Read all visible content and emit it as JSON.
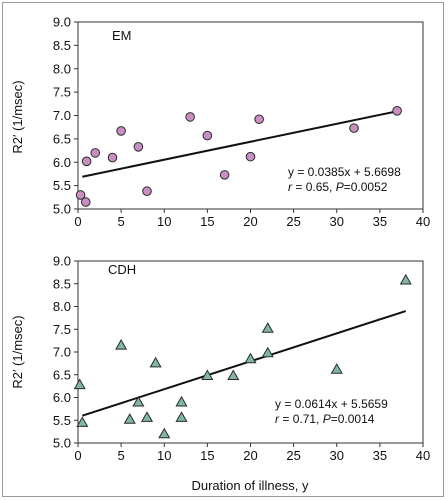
{
  "chart_data": [
    {
      "type": "scatter",
      "panel_label": "EM",
      "xlabel": "",
      "ylabel": "R2′ (1/msec)",
      "xlim": [
        0,
        40
      ],
      "ylim": [
        5.0,
        9.0
      ],
      "x_ticks": [
        "0",
        "5",
        "10",
        "15",
        "20",
        "25",
        "30",
        "35",
        "40"
      ],
      "y_ticks": [
        "5.0",
        "5.5",
        "6.0",
        "6.5",
        "7.0",
        "7.5",
        "8.0",
        "8.5",
        "9.0"
      ],
      "marker": "circle",
      "marker_color": "#c98fc2",
      "grid": false,
      "points": [
        {
          "x": 0.3,
          "y": 5.3
        },
        {
          "x": 0.9,
          "y": 5.15
        },
        {
          "x": 1.0,
          "y": 6.02
        },
        {
          "x": 2.0,
          "y": 6.2
        },
        {
          "x": 4.0,
          "y": 6.1
        },
        {
          "x": 5.0,
          "y": 6.67
        },
        {
          "x": 7.0,
          "y": 6.33
        },
        {
          "x": 8.0,
          "y": 5.38
        },
        {
          "x": 13.0,
          "y": 6.97
        },
        {
          "x": 15.0,
          "y": 6.57
        },
        {
          "x": 17.0,
          "y": 5.73
        },
        {
          "x": 20.0,
          "y": 6.12
        },
        {
          "x": 21.0,
          "y": 6.92
        },
        {
          "x": 32.0,
          "y": 6.73
        },
        {
          "x": 37.0,
          "y": 7.1
        }
      ],
      "fit_line": {
        "x": [
          0.5,
          37.5
        ],
        "y": [
          5.69,
          7.11
        ]
      },
      "equation": "y = 0.0385x + 5.6698",
      "stat_r": "0.65",
      "stat_p": "0.0052"
    },
    {
      "type": "scatter",
      "panel_label": "CDH",
      "xlabel": "Duration of illness, y",
      "ylabel": "R2′ (1/msec)",
      "xlim": [
        0,
        40
      ],
      "ylim": [
        5.0,
        9.0
      ],
      "x_ticks": [
        "0",
        "5",
        "10",
        "15",
        "20",
        "25",
        "30",
        "35",
        "40"
      ],
      "y_ticks": [
        "5.0",
        "5.5",
        "6.0",
        "6.5",
        "7.0",
        "7.5",
        "8.0",
        "8.5",
        "9.0"
      ],
      "marker": "triangle",
      "marker_color": "#7fb8a2",
      "grid": false,
      "points": [
        {
          "x": 0.2,
          "y": 6.28
        },
        {
          "x": 0.5,
          "y": 5.45
        },
        {
          "x": 5.0,
          "y": 7.15
        },
        {
          "x": 6.0,
          "y": 5.52
        },
        {
          "x": 7.0,
          "y": 5.9
        },
        {
          "x": 8.0,
          "y": 5.56
        },
        {
          "x": 9.0,
          "y": 6.76
        },
        {
          "x": 10.0,
          "y": 5.2
        },
        {
          "x": 12.0,
          "y": 5.9
        },
        {
          "x": 12.0,
          "y": 5.56
        },
        {
          "x": 15.0,
          "y": 6.48
        },
        {
          "x": 18.0,
          "y": 6.48
        },
        {
          "x": 20.0,
          "y": 6.85
        },
        {
          "x": 22.0,
          "y": 7.52
        },
        {
          "x": 22.0,
          "y": 6.98
        },
        {
          "x": 30.0,
          "y": 6.62
        },
        {
          "x": 38.0,
          "y": 8.58
        }
      ],
      "fit_line": {
        "x": [
          0.5,
          38.0
        ],
        "y": [
          5.6,
          7.9
        ]
      },
      "equation": "y = 0.0614x + 5.5659",
      "stat_r": "0.71",
      "stat_p": "0.0014"
    }
  ]
}
